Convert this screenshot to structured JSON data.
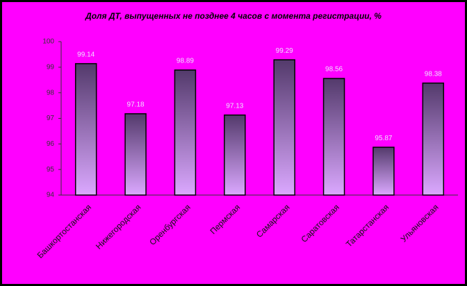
{
  "chart_data": {
    "type": "bar",
    "title": "Доля ДТ, выпущенных не позднее 4 часов с момента регистрации, %",
    "categories": [
      "Башкортостанская",
      "Нижегородская",
      "Оренбургская",
      "Пермская",
      "Самарская",
      "Саратовская",
      "Татарстанская",
      "Ульяновская"
    ],
    "values": [
      99.14,
      97.18,
      98.89,
      97.13,
      99.29,
      98.56,
      95.87,
      98.38
    ],
    "gradient": [
      "#533a6b",
      "#dba8ff"
    ],
    "ylim": [
      94,
      100
    ],
    "yticks": [
      94,
      95,
      96,
      97,
      98,
      99,
      100
    ],
    "grid": false
  }
}
